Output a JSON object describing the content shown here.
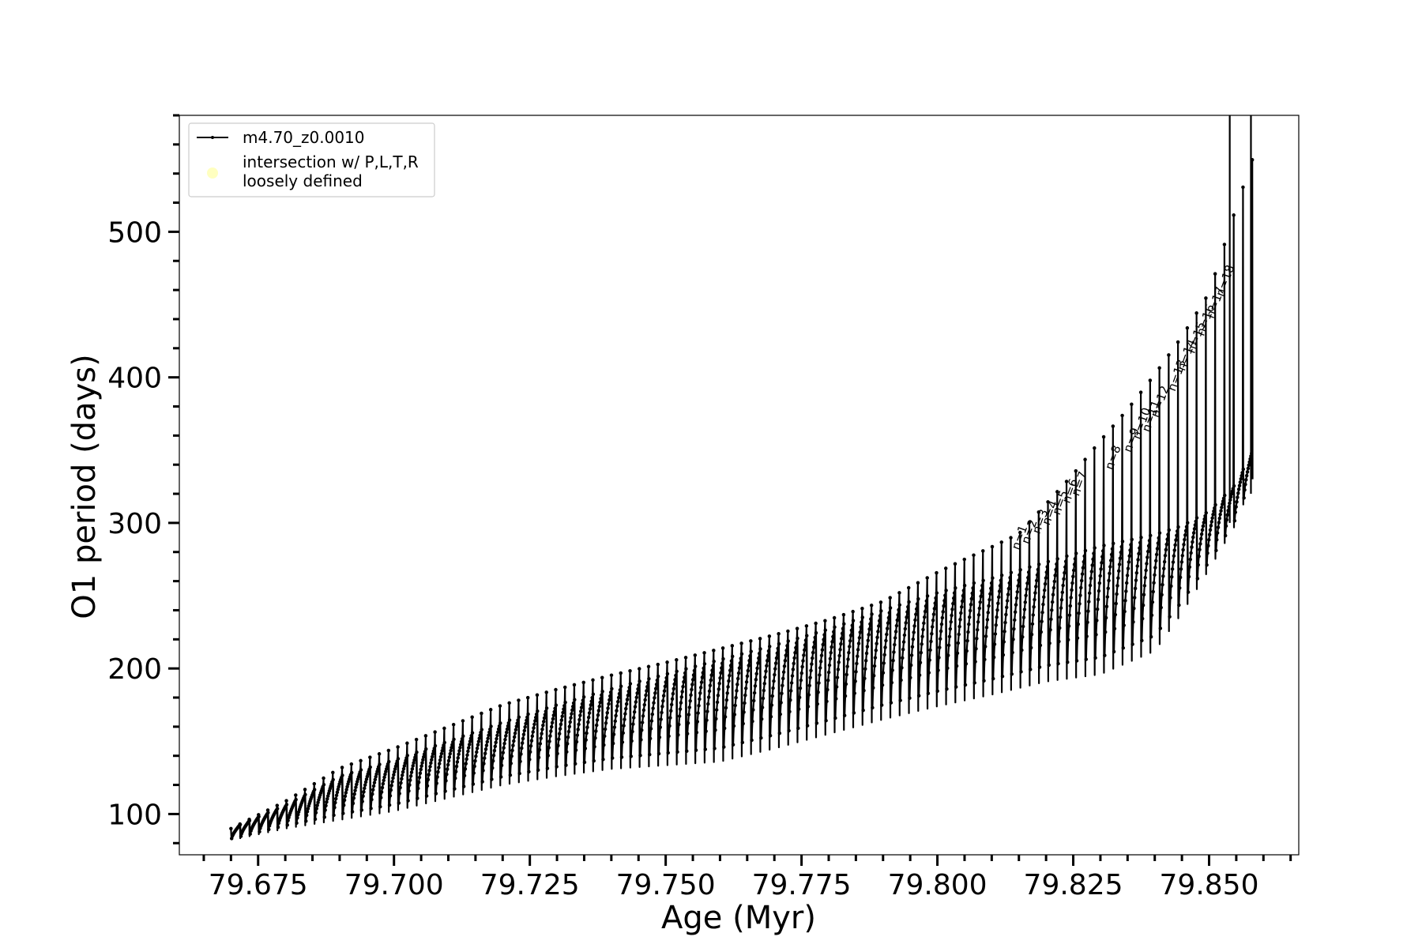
{
  "chart_data": {
    "type": "line",
    "title": "",
    "xlabel": "Age (Myr)",
    "ylabel": "O1 period (days)",
    "xlim": [
      79.6605,
      79.8665
    ],
    "ylim": [
      72,
      580
    ],
    "x_ticks": [
      79.675,
      79.7,
      79.725,
      79.75,
      79.775,
      79.8,
      79.825,
      79.85
    ],
    "x_tick_labels": [
      "79.675",
      "79.700",
      "79.725",
      "79.750",
      "79.775",
      "79.800",
      "79.825",
      "79.850"
    ],
    "y_ticks": [
      100,
      200,
      300,
      400,
      500
    ],
    "y_tick_labels": [
      "100",
      "200",
      "300",
      "400",
      "500"
    ],
    "grid": false,
    "legend_position": "top-left",
    "legend": [
      {
        "label": "m4.70_z0.0010",
        "kind": "line",
        "color": "#000000"
      },
      {
        "label": "intersection w/ P,L,T,R\nloosely defined",
        "kind": "point",
        "color": "#ffffc0"
      }
    ],
    "series": [
      {
        "name": "m4.70_z0.0010",
        "color": "#000000",
        "x_start": 79.67,
        "x_end": 79.858,
        "pulse_count": 110,
        "baseline": [
          [
            79.67,
            90
          ],
          [
            79.68,
            106
          ],
          [
            79.69,
            126
          ],
          [
            79.7,
            137
          ],
          [
            79.71,
            150
          ],
          [
            79.72,
            163
          ],
          [
            79.73,
            175
          ],
          [
            79.74,
            186
          ],
          [
            79.75,
            196
          ],
          [
            79.76,
            206
          ],
          [
            79.77,
            216
          ],
          [
            79.78,
            227
          ],
          [
            79.79,
            240
          ],
          [
            79.8,
            252
          ],
          [
            79.81,
            262
          ],
          [
            79.82,
            273
          ],
          [
            79.83,
            284
          ],
          [
            79.84,
            292
          ],
          [
            79.845,
            298
          ],
          [
            79.85,
            308
          ],
          [
            79.855,
            327
          ],
          [
            79.858,
            350
          ]
        ],
        "dip_depth": [
          [
            79.67,
            8
          ],
          [
            79.68,
            16
          ],
          [
            79.69,
            30
          ],
          [
            79.7,
            35
          ],
          [
            79.72,
            43
          ],
          [
            79.74,
            55
          ],
          [
            79.76,
            70
          ],
          [
            79.78,
            72
          ],
          [
            79.8,
            78
          ],
          [
            79.82,
            82
          ],
          [
            79.83,
            88
          ],
          [
            79.84,
            80
          ],
          [
            79.85,
            40
          ],
          [
            79.858,
            20
          ]
        ],
        "spike_height": [
          [
            79.67,
            0
          ],
          [
            79.7,
            8
          ],
          [
            79.72,
            12
          ],
          [
            79.75,
            8
          ],
          [
            79.79,
            6
          ],
          [
            79.805,
            18
          ],
          [
            79.815,
            25
          ],
          [
            79.825,
            55
          ],
          [
            79.835,
            90
          ],
          [
            79.845,
            130
          ],
          [
            79.85,
            150
          ],
          [
            79.855,
            190
          ],
          [
            79.858,
            200
          ]
        ]
      }
    ],
    "vertical_lines": [
      {
        "x": 79.8538,
        "y_from": 300,
        "y_to": 580
      },
      {
        "x": 79.8577,
        "y_from": 320,
        "y_to": 580
      }
    ],
    "annotations": [
      {
        "text": "n=1",
        "x": 79.815,
        "y": 281
      },
      {
        "text": "n=2",
        "x": 79.8168,
        "y": 285
      },
      {
        "text": "n=3",
        "x": 79.8188,
        "y": 292
      },
      {
        "text": "n=4",
        "x": 79.8206,
        "y": 298
      },
      {
        "text": "n=5",
        "x": 79.8225,
        "y": 305
      },
      {
        "text": "n=6",
        "x": 79.8243,
        "y": 313
      },
      {
        "text": "n=7",
        "x": 79.826,
        "y": 318
      },
      {
        "text": "n=8",
        "x": 79.8322,
        "y": 336
      },
      {
        "text": "n=9",
        "x": 79.8356,
        "y": 348
      },
      {
        "text": "n=10",
        "x": 79.8372,
        "y": 357
      },
      {
        "text": "n=11",
        "x": 79.839,
        "y": 362
      },
      {
        "text": "n=12",
        "x": 79.8406,
        "y": 372
      },
      {
        "text": "n=13",
        "x": 79.8437,
        "y": 390
      },
      {
        "text": "n=14",
        "x": 79.8455,
        "y": 404
      },
      {
        "text": "n=15",
        "x": 79.8473,
        "y": 416
      },
      {
        "text": "n=16",
        "x": 79.849,
        "y": 428
      },
      {
        "text": "n=17",
        "x": 79.8508,
        "y": 440
      },
      {
        "text": "n=18",
        "x": 79.8526,
        "y": 455
      }
    ]
  }
}
